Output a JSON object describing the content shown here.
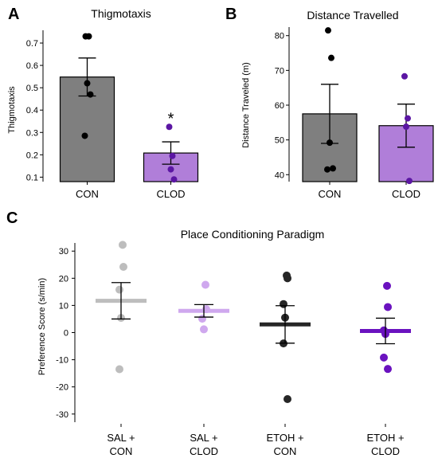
{
  "chart_data": [
    {
      "panel_letter": "A",
      "type": "bar",
      "title": "Thigmotaxis",
      "ylabel": "Thigmotaxis",
      "ylim": [
        0.08,
        0.75
      ],
      "yticks": [
        0.1,
        0.2,
        0.3,
        0.4,
        0.5,
        0.6,
        0.7
      ],
      "categories": [
        "CON",
        "CLOD"
      ],
      "values": [
        0.548,
        0.208
      ],
      "errors": [
        0.085,
        0.05
      ],
      "bar_colors": [
        "#7f7f7f",
        "#b07ed9"
      ],
      "point_colors": [
        "#000000",
        "#5b16a3"
      ],
      "points": [
        [
          0.73,
          0.73,
          0.52,
          0.47,
          0.285
        ],
        [
          0.325,
          0.195,
          0.135,
          0.09
        ]
      ],
      "significance": [
        "",
        "*"
      ]
    },
    {
      "panel_letter": "B",
      "type": "bar",
      "title": "Distance Travelled",
      "ylabel": "Distance Traveled (m)",
      "ylim": [
        38,
        82
      ],
      "yticks": [
        40,
        50,
        60,
        70,
        80
      ],
      "categories": [
        "CON",
        "CLOD"
      ],
      "values": [
        57.5,
        54.1
      ],
      "errors": [
        8.5,
        6.2
      ],
      "bar_colors": [
        "#7f7f7f",
        "#b07ed9"
      ],
      "point_colors": [
        "#000000",
        "#5b16a3"
      ],
      "points": [
        [
          81.5,
          73.6,
          49.2,
          41.8,
          41.5
        ],
        [
          68.3,
          56.2,
          53.8,
          38.2
        ]
      ]
    },
    {
      "panel_letter": "C",
      "type": "scatter",
      "title": "Place Conditioning Paradigm",
      "ylabel": "Preference Score (s/min)",
      "ylim": [
        -33,
        33
      ],
      "yticks": [
        30,
        20,
        10,
        0,
        -10,
        -20,
        -30
      ],
      "categories": [
        [
          "SAL +",
          "CON"
        ],
        [
          "SAL +",
          "CLOD"
        ],
        [
          "ETOH +",
          "CON"
        ],
        [
          "ETOH +",
          "CLOD"
        ]
      ],
      "means": [
        11.7,
        8.0,
        3.0,
        0.6
      ],
      "errors": [
        6.7,
        2.3,
        6.9,
        4.7
      ],
      "colors": [
        "#bdbdbd",
        "#cfa8ee",
        "#262626",
        "#6a12bf"
      ],
      "points": [
        [
          32.3,
          24.2,
          15.8,
          5.4,
          -13.5
        ],
        [
          17.6,
          8.6,
          5.1,
          1.2
        ],
        [
          21.0,
          20.0,
          10.5,
          5.5,
          -4.0,
          -24.5
        ],
        [
          17.2,
          9.4,
          0.8,
          -0.5,
          -9.2,
          -13.4
        ]
      ]
    }
  ]
}
